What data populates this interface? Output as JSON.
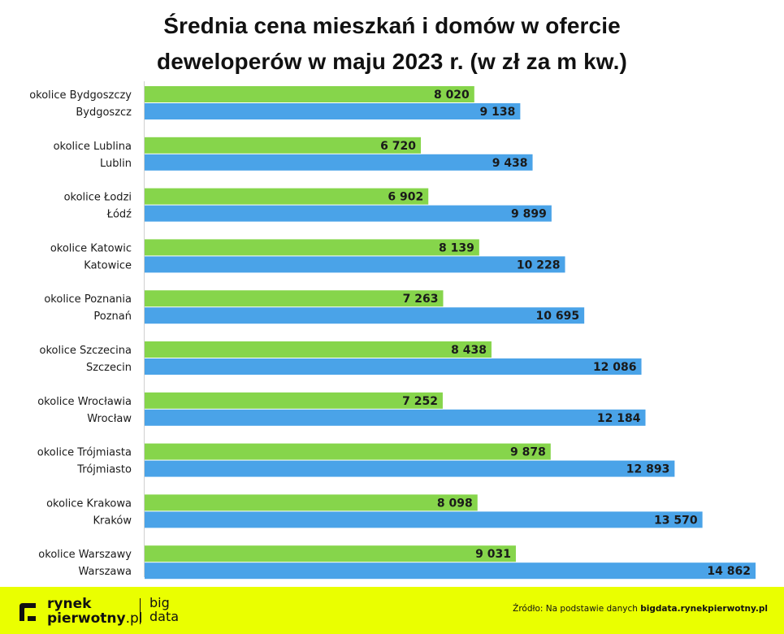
{
  "title": {
    "line1": "Średnia cena mieszkań i domów w ofercie",
    "line2": "deweloperów w maju 2023 r. (w zł za m kw.)"
  },
  "chart_data": {
    "type": "bar",
    "orientation": "horizontal",
    "title": "Średnia cena mieszkań i domów w ofercie deweloperów w maju 2023 r. (w zł za m kw.)",
    "xlim": [
      0,
      14862
    ],
    "grid": false,
    "colors": {
      "surroundings": "#86d54b",
      "city": "#4aa3e8",
      "label_text": "#1a1a1a"
    },
    "categories": [
      "okolice Bydgoszczy",
      "Bydgoszcz",
      "okolice Lublina",
      "Lublin",
      "okolice Łodzi",
      "Łódź",
      "okolice Katowic",
      "Katowice",
      "okolice Poznania",
      "Poznań",
      "okolice Szczecina",
      "Szczecin",
      "okolice Wrocławia",
      "Wrocław",
      "okolice Trójmiasta",
      "Trójmiasto",
      "okolice Krakowa",
      "Kraków",
      "okolice Warszawy",
      "Warszawa"
    ],
    "values": [
      8020,
      9138,
      6720,
      9438,
      6902,
      9899,
      8139,
      10228,
      7263,
      10695,
      8438,
      12086,
      7252,
      12184,
      9878,
      12893,
      8098,
      13570,
      9031,
      14862
    ],
    "value_labels": [
      "8 020",
      "9 138",
      "6 720",
      "9 438",
      "6 902",
      "9 899",
      "8 139",
      "10 228",
      "7 263",
      "10 695",
      "8 438",
      "12 086",
      "7 252",
      "12 184",
      "9 878",
      "12 893",
      "8 098",
      "13 570",
      "9 031",
      "14 862"
    ],
    "bar_kind": [
      "surroundings",
      "city",
      "surroundings",
      "city",
      "surroundings",
      "city",
      "surroundings",
      "city",
      "surroundings",
      "city",
      "surroundings",
      "city",
      "surroundings",
      "city",
      "surroundings",
      "city",
      "surroundings",
      "city",
      "surroundings",
      "city"
    ]
  },
  "footer": {
    "logo_line1": "rynek",
    "logo_line2": "pierwotny",
    "logo_suffix": ".pl",
    "bigdata_line1": "big",
    "bigdata_line2": "data",
    "source_prefix": "Źródło: Na podstawie danych",
    "source_site": "bigdata.rynekpierwotny.pl",
    "background": "#eaff00"
  }
}
